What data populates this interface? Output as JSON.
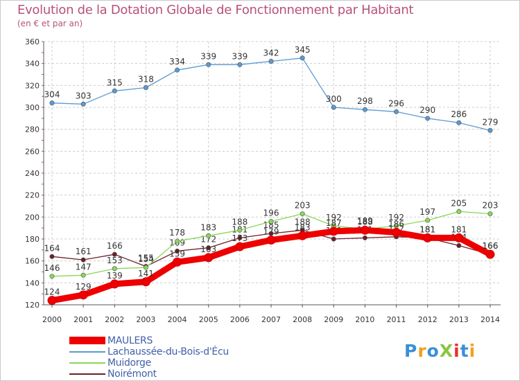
{
  "header": {
    "title": "Evolution de la Dotation Globale de Fonctionnement par Habitant",
    "subtitle": "(en € et par an)"
  },
  "logo": {
    "text": "ProXiti"
  },
  "chart_data": {
    "type": "line",
    "title": "Evolution de la Dotation Globale de Fonctionnement par Habitant",
    "subtitle": "(en € et par an)",
    "xlabel": "",
    "ylabel": "",
    "ylim": [
      120,
      360
    ],
    "yticks": [
      120,
      140,
      160,
      180,
      200,
      220,
      240,
      260,
      280,
      300,
      320,
      340,
      360
    ],
    "grid": true,
    "legend_position": "bottom-left",
    "x": [
      "2000",
      "2001",
      "2002",
      "2003",
      "2004",
      "2005",
      "2006",
      "2007",
      "2008",
      "2009",
      "2010",
      "2011",
      "2012",
      "2013",
      "2014"
    ],
    "series": [
      {
        "name": "Noirémont",
        "color": "#6b1f2a",
        "values": [
          164,
          161,
          166,
          155,
          169,
          172,
          181,
          185,
          188,
          180,
          181,
          182,
          181,
          174,
          166
        ],
        "labels": [
          "164",
          "161",
          "166",
          "155",
          "169",
          "172",
          "181",
          "185",
          "188",
          "180",
          "181",
          "182",
          "181",
          "174",
          "166"
        ]
      },
      {
        "name": "Muidorge",
        "color": "#88d65a",
        "values": [
          146,
          147,
          153,
          154,
          178,
          183,
          188,
          196,
          203,
          192,
          189,
          192,
          197,
          205,
          203
        ],
        "labels": [
          "146",
          "147",
          "153",
          "154",
          "178",
          "183",
          "188",
          "196",
          "203",
          "192",
          "189",
          "192",
          "197",
          "205",
          "203"
        ]
      },
      {
        "name": "Lachaussée-du-Bois-d'Écu",
        "color": "#5b9ad0",
        "values": [
          304,
          303,
          315,
          318,
          334,
          339,
          339,
          342,
          345,
          300,
          298,
          296,
          290,
          286,
          279
        ],
        "labels": [
          "304",
          "303",
          "315",
          "318",
          "334",
          "339",
          "339",
          "342",
          "345",
          "300",
          "298",
          "296",
          "290",
          "286",
          "279"
        ]
      },
      {
        "name": "MAULERS",
        "color": "#ee0000",
        "values": [
          124,
          129,
          139,
          141,
          159,
          163,
          173,
          179,
          183,
          187,
          188,
          186,
          181,
          181,
          166
        ],
        "labels": [
          "124",
          "129",
          "139",
          "141",
          "159",
          "163",
          "173",
          "179",
          "183",
          "187",
          "188",
          "186",
          "181",
          "181",
          "166"
        ]
      }
    ]
  },
  "legend": {
    "items": [
      {
        "label": "MAULERS",
        "color": "#ee0000"
      },
      {
        "label": "Lachaussée-du-Bois-d'Écu",
        "color": "#5b9ad0"
      },
      {
        "label": "Muidorge",
        "color": "#88d65a"
      },
      {
        "label": "Noirémont",
        "color": "#6b1f2a"
      }
    ]
  }
}
